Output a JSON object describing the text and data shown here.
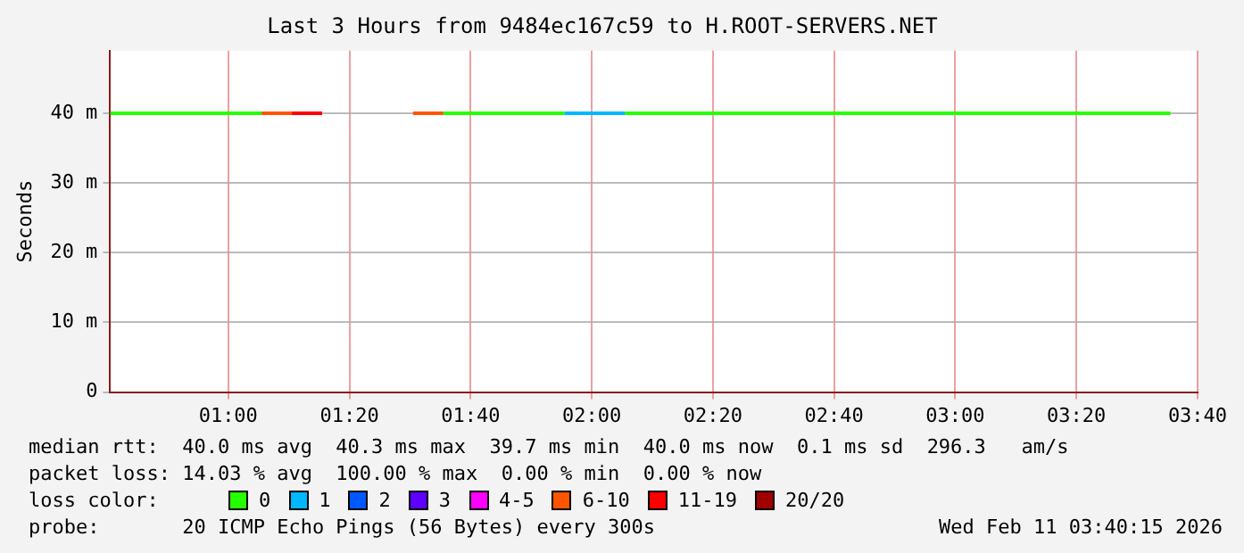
{
  "chart_data": {
    "type": "step",
    "title": "Last 3 Hours from 9484ec167c59 to H.ROOT-SERVERS.NET",
    "ylabel": "Seconds",
    "x": [
      0.675,
      0.7583,
      0.8417,
      0.925,
      1.0083,
      1.0917,
      1.175,
      1.2583,
      1.3417,
      1.425,
      1.5083,
      1.5917,
      1.675,
      1.7583,
      1.8417,
      1.925,
      2.0083,
      2.0917,
      2.175,
      2.2583,
      2.3417,
      2.425,
      2.5083,
      2.5917,
      2.675,
      2.7583,
      2.8417,
      2.925,
      3.0083,
      3.0917,
      3.175,
      3.2583,
      3.3417,
      3.425,
      3.5083,
      3.5917
    ],
    "series": [
      {
        "name": "0",
        "color": "#26ff00",
        "values": [
          40,
          40,
          40,
          40,
          40,
          40,
          null,
          null,
          null,
          null,
          null,
          40,
          40,
          40,
          40,
          40,
          null,
          40,
          40,
          40,
          40,
          40,
          40,
          40,
          40,
          40,
          40,
          40,
          40,
          40,
          40,
          40,
          40,
          40,
          40,
          40
        ]
      },
      {
        "name": "1",
        "color": "#00b8ff",
        "values": [
          null,
          null,
          null,
          null,
          null,
          null,
          null,
          null,
          null,
          null,
          null,
          null,
          null,
          null,
          null,
          40,
          40,
          40,
          null,
          null,
          null,
          null,
          null,
          null,
          null,
          null,
          null,
          null,
          null,
          null,
          null,
          null,
          null,
          null,
          null,
          null
        ]
      },
      {
        "name": "2",
        "color": "#0059ff",
        "values": [
          null,
          null,
          null,
          null,
          null,
          null,
          null,
          null,
          null,
          null,
          null,
          null,
          null,
          null,
          null,
          null,
          null,
          null,
          null,
          null,
          null,
          null,
          null,
          null,
          null,
          null,
          null,
          null,
          null,
          null,
          null,
          null,
          null,
          null,
          null,
          null
        ]
      },
      {
        "name": "3",
        "color": "#5e00ff",
        "values": [
          null,
          null,
          null,
          null,
          null,
          null,
          null,
          null,
          null,
          null,
          null,
          null,
          null,
          null,
          null,
          null,
          null,
          null,
          null,
          null,
          null,
          null,
          null,
          null,
          null,
          null,
          null,
          null,
          null,
          null,
          null,
          null,
          null,
          null,
          null,
          null
        ]
      },
      {
        "name": "4-5",
        "color": "#ff00ff",
        "values": [
          null,
          null,
          null,
          null,
          null,
          null,
          null,
          null,
          null,
          null,
          null,
          null,
          null,
          null,
          null,
          null,
          null,
          null,
          null,
          null,
          null,
          null,
          null,
          null,
          null,
          null,
          null,
          null,
          null,
          null,
          null,
          null,
          null,
          null,
          null,
          null
        ]
      },
      {
        "name": "6-10",
        "color": "#ff5500",
        "values": [
          null,
          null,
          null,
          null,
          null,
          40,
          40,
          null,
          null,
          null,
          40,
          40,
          null,
          null,
          null,
          null,
          null,
          null,
          null,
          null,
          null,
          null,
          null,
          null,
          null,
          null,
          null,
          null,
          null,
          null,
          null,
          null,
          null,
          null,
          null,
          null
        ]
      },
      {
        "name": "11-19",
        "color": "#ff0000",
        "values": [
          null,
          null,
          null,
          null,
          null,
          null,
          40,
          40,
          null,
          null,
          null,
          null,
          null,
          null,
          null,
          null,
          null,
          null,
          null,
          null,
          null,
          null,
          null,
          null,
          null,
          null,
          null,
          null,
          null,
          null,
          null,
          null,
          null,
          null,
          null,
          null
        ]
      },
      {
        "name": "20/20",
        "color": "#a10000",
        "values": [
          null,
          null,
          null,
          null,
          null,
          null,
          null,
          null,
          null,
          null,
          null,
          null,
          null,
          null,
          null,
          null,
          null,
          null,
          null,
          null,
          null,
          null,
          null,
          null,
          null,
          null,
          null,
          null,
          null,
          null,
          null,
          null,
          null,
          null,
          null,
          null
        ]
      }
    ],
    "legend": "bottom",
    "legend_title": "loss color:",
    "xlim": [
      0.675,
      3.6667
    ],
    "xticks": [
      {
        "value": 1,
        "label": "01:00"
      },
      {
        "value": 1.3333,
        "label": "01:20"
      },
      {
        "value": 1.6667,
        "label": "01:40"
      },
      {
        "value": 2,
        "label": "02:00"
      },
      {
        "value": 2.3333,
        "label": "02:20"
      },
      {
        "value": 2.6667,
        "label": "02:40"
      },
      {
        "value": 3,
        "label": "03:00"
      },
      {
        "value": 3.3333,
        "label": "03:20"
      },
      {
        "value": 3.6667,
        "label": "03:40"
      }
    ],
    "ylim": [
      0,
      49
    ],
    "yticks": [
      {
        "value": 0,
        "label": "0"
      },
      {
        "value": 10,
        "label": "10 m"
      },
      {
        "value": 20,
        "label": "20 m"
      },
      {
        "value": 30,
        "label": "30 m"
      },
      {
        "value": 40,
        "label": "40 m"
      }
    ],
    "grid": true,
    "annotations": [
      "median rtt:  40.0 ms avg  40.3 ms max  39.7 ms min  40.0 ms now  0.1 ms sd  296.3   am/s",
      "packet loss: 14.03 % avg  100.00 % max  0.00 % min  0.00 % now",
      "probe:       20 ICMP Echo Pings (56 Bytes) every 300s",
      "Wed Feb 11 03:40:15 2026"
    ]
  }
}
